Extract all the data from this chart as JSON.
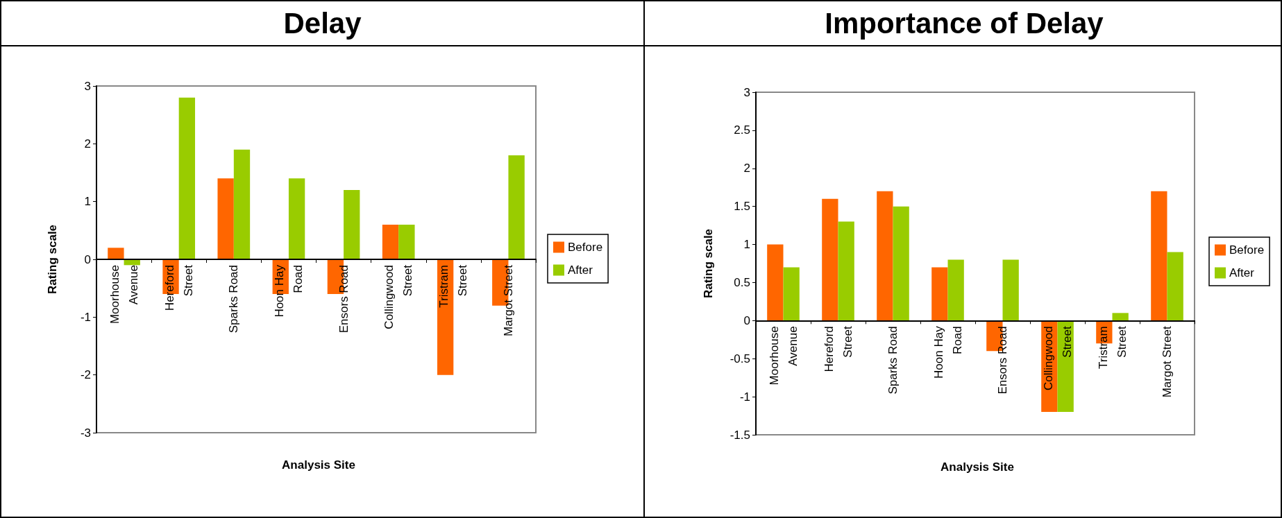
{
  "chart_data": [
    {
      "type": "bar",
      "title": "Delay",
      "xlabel": "Analysis Site",
      "ylabel": "Rating scale",
      "categories": [
        "Moorhouse Avenue",
        "Hereford Street",
        "Sparks Road",
        "Hoon Hay Road",
        "Ensors Road",
        "Collingwood Street",
        "Tristram Street",
        "Margot Street"
      ],
      "series": [
        {
          "name": "Before",
          "color": "#ff6600",
          "values": [
            0.2,
            -0.6,
            1.4,
            -0.6,
            -0.6,
            0.6,
            -2,
            -0.8
          ]
        },
        {
          "name": "After",
          "color": "#99cc00",
          "values": [
            -0.1,
            2.8,
            1.9,
            1.4,
            1.2,
            0.6,
            0,
            1.8
          ]
        }
      ],
      "ylim": [
        -3,
        3
      ],
      "yticks": [
        -3,
        -2,
        -1,
        0,
        1,
        2,
        3
      ],
      "legend": "right"
    },
    {
      "type": "bar",
      "title": "Importance of Delay",
      "xlabel": "Analysis Site",
      "ylabel": "Rating scale",
      "categories": [
        "Moorhouse Avenue",
        "Hereford Street",
        "Sparks Road",
        "Hoon Hay Road",
        "Ensors Road",
        "Collingwood Street",
        "Tristram Street",
        "Margot Street"
      ],
      "series": [
        {
          "name": "Before",
          "color": "#ff6600",
          "values": [
            1,
            1.6,
            1.7,
            0.7,
            -0.4,
            -1.2,
            -0.3,
            1.7
          ]
        },
        {
          "name": "After",
          "color": "#99cc00",
          "values": [
            0.7,
            1.3,
            1.5,
            0.8,
            0.8,
            -1.2,
            0.1,
            0.9
          ]
        }
      ],
      "ylim": [
        -1.5,
        3
      ],
      "yticks": [
        -1.5,
        -1,
        -0.5,
        0,
        0.5,
        1,
        1.5,
        2,
        2.5,
        3
      ],
      "legend": "right"
    }
  ]
}
